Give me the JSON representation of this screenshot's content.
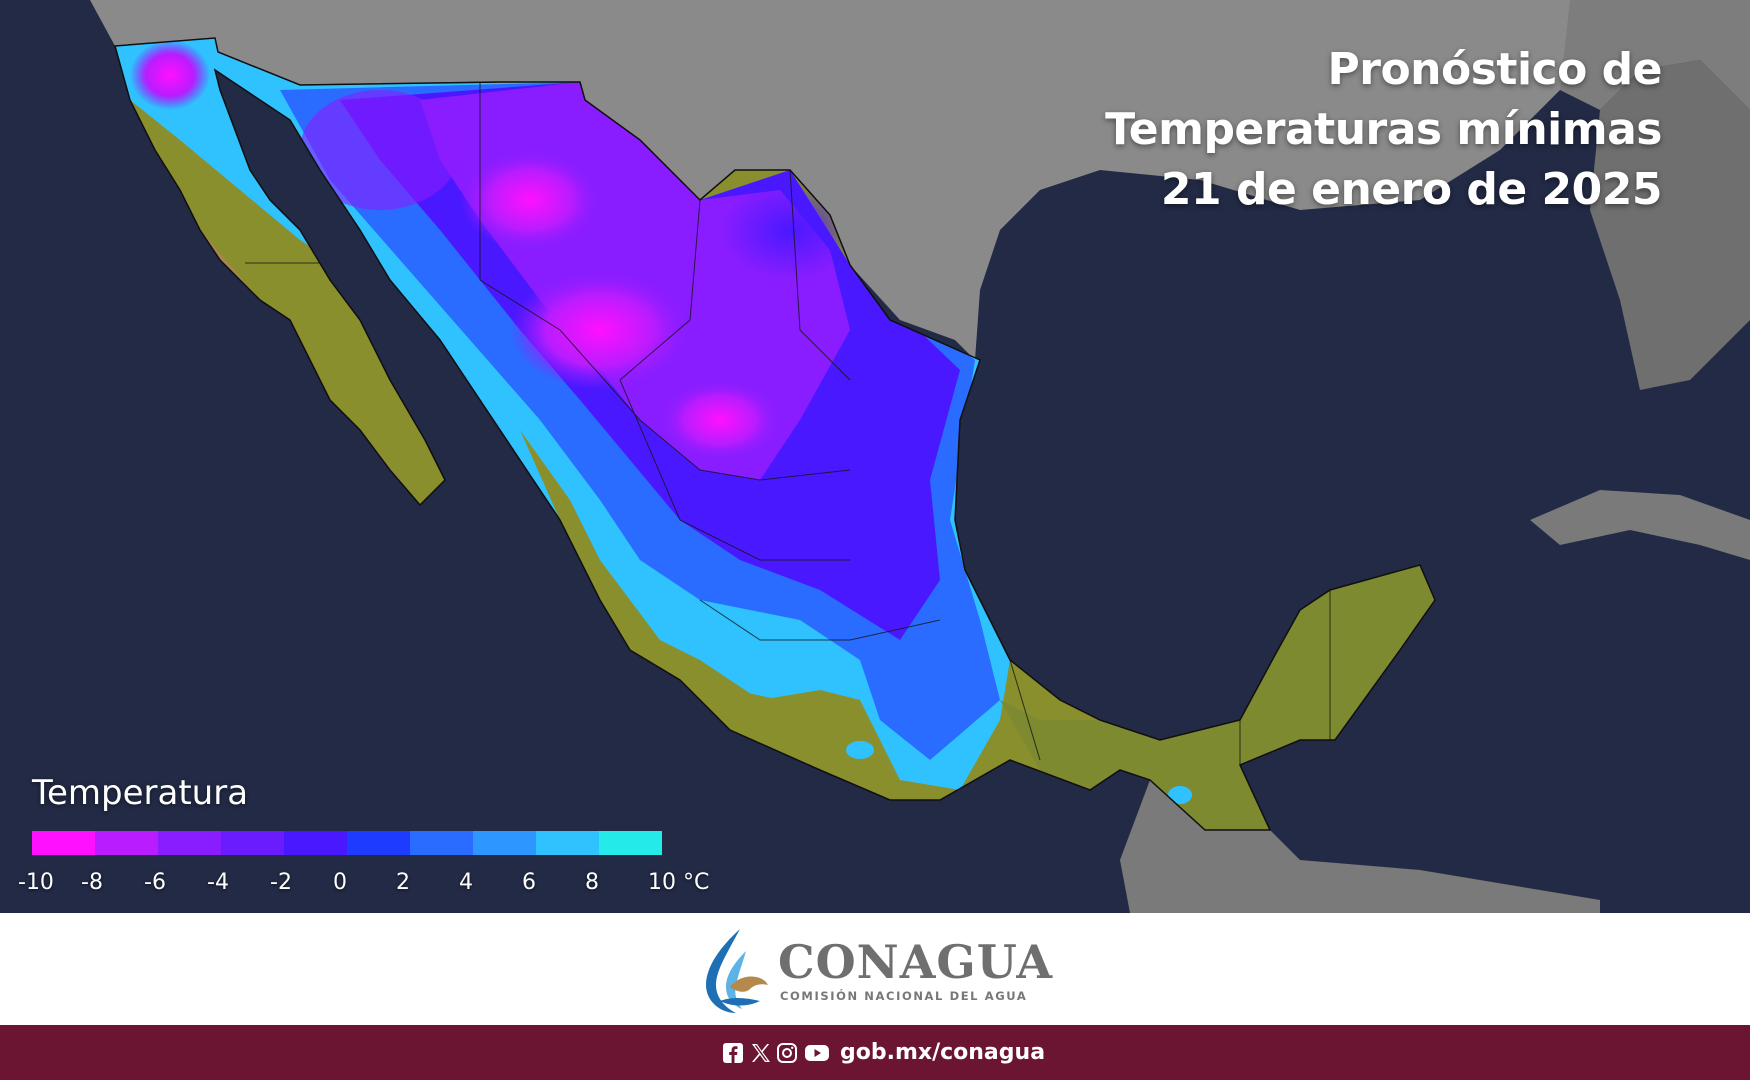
{
  "title": {
    "line1": "Pronóstico de",
    "line2": "Temperaturas mínimas",
    "line3": "21 de enero de 2025"
  },
  "legend": {
    "title": "Temperatura",
    "unit": "°C",
    "ticks": [
      "-10",
      "-8",
      "-6",
      "-4",
      "-2",
      "0",
      "2",
      "4",
      "6",
      "8",
      "10 °C"
    ],
    "colors": [
      "#ff10ff",
      "#b91cff",
      "#8a1dff",
      "#6a1cff",
      "#4a18ff",
      "#1e3cff",
      "#2a6cff",
      "#2d96ff",
      "#2fc2ff",
      "#25eaea"
    ]
  },
  "map": {
    "land_colors": {
      "usa": "#8b8b8b",
      "mexico_warm": "#8a8f2e",
      "baja_warm": "#a8844f",
      "guatemala": "#7c7c7c",
      "ocean": "#1f2640"
    }
  },
  "logo": {
    "name": "CONAGUA",
    "subtitle": "COMISIÓN NACIONAL DEL AGUA"
  },
  "footer": {
    "icons": [
      "facebook-icon",
      "x-icon",
      "instagram-icon",
      "youtube-icon"
    ],
    "url": "gob.mx/conagua",
    "color": "#6b1532"
  }
}
